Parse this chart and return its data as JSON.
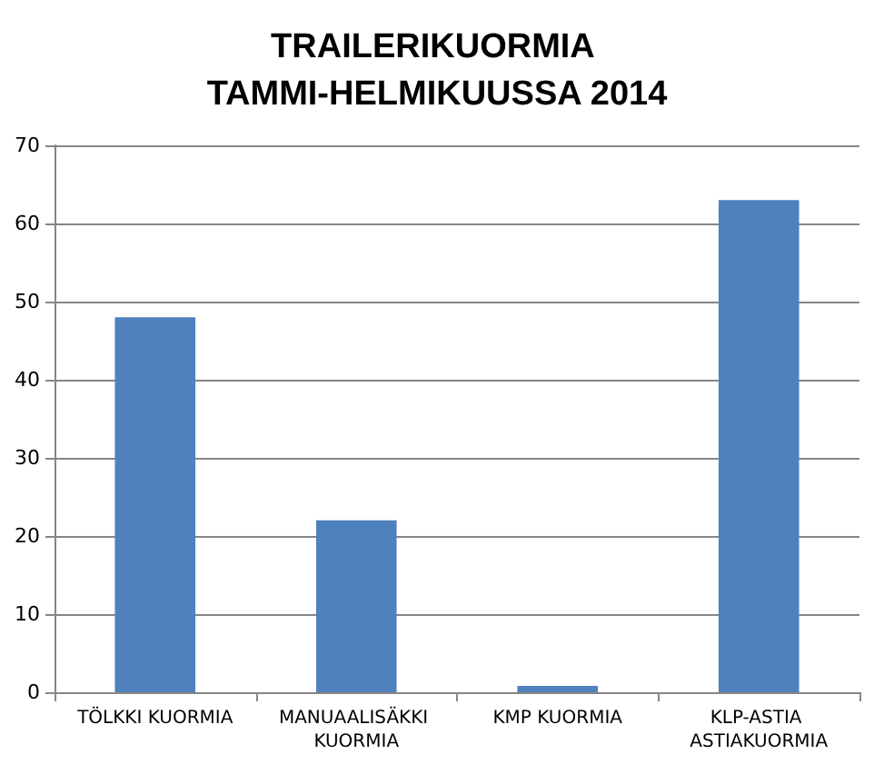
{
  "chart_data": {
    "type": "bar",
    "title": "TRAILERIKUORMIA TAMMI-HELMIKUUSSA 2014",
    "categories": [
      "TÖLKKI KUORMIA",
      "MANUAALISÄKKI KUORMIA",
      "KMP KUORMIA",
      "KLP-ASTIA ASTIAKUORMIA"
    ],
    "values": [
      48,
      22,
      0.8,
      63
    ],
    "color": "#4f81bd",
    "ylim": [
      0,
      70
    ],
    "yticks": [
      0,
      10,
      20,
      30,
      40,
      50,
      60,
      70
    ],
    "grid": "y"
  }
}
